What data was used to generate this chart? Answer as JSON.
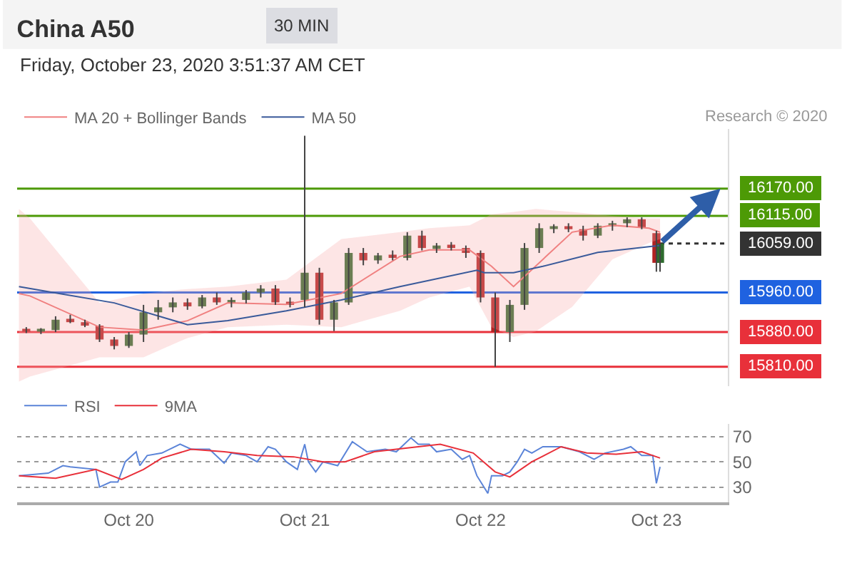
{
  "chart_data": [
    {
      "type": "candlestick",
      "title": "China A50",
      "subtitle": "Friday, October 23, 2020 3:51:37 AM CET",
      "annotations": [
        "30 MIN",
        "Research © 2020"
      ],
      "x": [
        "2020-10-19T10:00",
        "2020-10-19T12:00",
        "2020-10-19T14:00",
        "2020-10-19T16:00",
        "2020-10-19T18:00",
        "2020-10-19T20:00",
        "2020-10-19T22:00",
        "2020-10-20T00:00",
        "2020-10-20T02:00",
        "2020-10-20T04:00",
        "2020-10-20T06:00",
        "2020-10-20T08:00",
        "2020-10-20T10:00",
        "2020-10-20T12:00",
        "2020-10-20T14:00",
        "2020-10-20T16:00",
        "2020-10-20T18:00",
        "2020-10-20T20:00",
        "2020-10-20T22:00",
        "2020-10-21T00:00",
        "2020-10-21T02:00",
        "2020-10-21T04:00",
        "2020-10-21T06:00",
        "2020-10-21T08:00",
        "2020-10-21T10:00",
        "2020-10-21T12:00",
        "2020-10-21T14:00",
        "2020-10-21T16:00",
        "2020-10-21T18:00",
        "2020-10-21T20:00",
        "2020-10-21T22:00",
        "2020-10-22T00:00",
        "2020-10-22T02:00",
        "2020-10-22T04:00",
        "2020-10-22T06:00",
        "2020-10-22T08:00",
        "2020-10-22T10:00",
        "2020-10-22T12:00",
        "2020-10-22T14:00",
        "2020-10-22T16:00",
        "2020-10-22T18:00",
        "2020-10-22T20:00",
        "2020-10-22T22:00",
        "2020-10-23T00:00",
        "2020-10-23T00:30"
      ],
      "ohlc": [
        [
          15885,
          15890,
          15878,
          15882
        ],
        [
          15882,
          15888,
          15876,
          15884
        ],
        [
          15884,
          15912,
          15880,
          15905
        ],
        [
          15905,
          15915,
          15898,
          15900
        ],
        [
          15900,
          15905,
          15890,
          15893
        ],
        [
          15893,
          15896,
          15860,
          15865
        ],
        [
          15865,
          15870,
          15845,
          15852
        ],
        [
          15852,
          15880,
          15848,
          15875
        ],
        [
          15875,
          15935,
          15860,
          15920
        ],
        [
          15920,
          15945,
          15905,
          15930
        ],
        [
          15930,
          15950,
          15920,
          15940
        ],
        [
          15940,
          15948,
          15925,
          15932
        ],
        [
          15932,
          15955,
          15928,
          15950
        ],
        [
          15950,
          15960,
          15935,
          15940
        ],
        [
          15940,
          15950,
          15930,
          15945
        ],
        [
          15945,
          15965,
          15938,
          15960
        ],
        [
          15960,
          15975,
          15950,
          15968
        ],
        [
          15968,
          15975,
          15935,
          15940
        ],
        [
          15940,
          15950,
          15930,
          15935
        ],
        [
          15945,
          16277,
          15930,
          16000
        ],
        [
          16000,
          16010,
          15895,
          15905
        ],
        [
          15905,
          15945,
          15882,
          15940
        ],
        [
          15940,
          16050,
          15935,
          16040
        ],
        [
          16040,
          16050,
          16015,
          16025
        ],
        [
          16025,
          16040,
          16018,
          16035
        ],
        [
          16035,
          16045,
          16025,
          16030
        ],
        [
          16030,
          16082,
          16025,
          16075
        ],
        [
          16075,
          16085,
          16045,
          16050
        ],
        [
          16050,
          16060,
          16040,
          16055
        ],
        [
          16055,
          16062,
          16045,
          16050
        ],
        [
          16050,
          16055,
          16030,
          16040
        ],
        [
          16040,
          16045,
          15940,
          15950
        ],
        [
          15950,
          15960,
          15810,
          15880
        ],
        [
          15880,
          15945,
          15860,
          15935
        ],
        [
          15935,
          16060,
          15925,
          16050
        ],
        [
          16050,
          16100,
          16040,
          16090
        ],
        [
          16090,
          16098,
          16080,
          16092
        ],
        [
          16092,
          16100,
          16082,
          16088
        ],
        [
          16088,
          16095,
          16065,
          16075
        ],
        [
          16075,
          16100,
          16070,
          16095
        ],
        [
          16095,
          16105,
          16085,
          16100
        ],
        [
          16100,
          16112,
          16092,
          16108
        ],
        [
          16108,
          16112,
          16088,
          16092
        ],
        [
          16080,
          16085,
          16002,
          16020
        ],
        [
          16020,
          16059,
          16002,
          16059
        ]
      ],
      "series": [
        {
          "name": "MA 20 + Bollinger Bands",
          "type": "line",
          "color": "#f08080",
          "x": [
            "2020-10-19T09:00",
            "2020-10-19T10:30",
            "2020-10-19T20:00",
            "2020-10-20T02:00",
            "2020-10-20T08:00",
            "2020-10-20T13:30",
            "2020-10-20T21:30",
            "2020-10-21T05:00",
            "2020-10-21T13:00",
            "2020-10-21T17:00",
            "2020-10-21T22:30",
            "2020-10-22T01:30",
            "2020-10-22T04:30",
            "2020-10-22T07:30",
            "2020-10-22T12:30",
            "2020-10-22T18:00",
            "2020-10-22T23:00",
            "2020-10-23T00:30"
          ],
          "values": [
            15958,
            15953,
            15890,
            15884,
            15903,
            15939,
            15936,
            15958,
            16033,
            16046,
            16046,
            16013,
            15972,
            16013,
            16082,
            16096,
            16090,
            16082
          ],
          "upper": [
            16129,
            16110,
            15939,
            15958,
            15967,
            15972,
            15986,
            16068,
            16082,
            16090,
            16096,
            16118,
            16123,
            16129,
            16123,
            16115,
            16110,
            16110
          ],
          "lower": [
            15780,
            15790,
            15829,
            15829,
            15868,
            15890,
            15895,
            15890,
            15923,
            15950,
            15972,
            15890,
            15870,
            15881,
            15931,
            16027,
            16060,
            16068
          ]
        },
        {
          "name": "MA 50",
          "type": "line",
          "color": "#3a5a9a",
          "x": [
            "2020-10-19T09:00",
            "2020-10-19T14:30",
            "2020-10-19T22:00",
            "2020-10-20T08:00",
            "2020-10-20T13:30",
            "2020-10-20T21:30",
            "2020-10-21T05:00",
            "2020-10-21T13:00",
            "2020-10-21T23:30",
            "2020-10-22T00:30",
            "2020-10-22T04:30",
            "2020-10-22T08:30",
            "2020-10-22T16:00",
            "2020-10-23T00:30"
          ],
          "values": [
            15972,
            15958,
            15939,
            15895,
            15903,
            15923,
            15945,
            15972,
            16005,
            16000,
            16000,
            16013,
            16041,
            16055
          ]
        }
      ],
      "ref_lines": [
        {
          "axis": "y",
          "value": 16170,
          "label": "16170.00",
          "color": "#4d9a06"
        },
        {
          "axis": "y",
          "value": 16115,
          "label": "16115.00",
          "color": "#4d9a06"
        },
        {
          "axis": "y",
          "value": 16059,
          "label": "16059.00",
          "color": "#333333",
          "line_style": "dotted"
        },
        {
          "axis": "y",
          "value": 15960,
          "label": "15960.00",
          "color": "#1f62e0"
        },
        {
          "axis": "y",
          "value": 15880,
          "label": "15880.00",
          "color": "#e8303a"
        },
        {
          "axis": "y",
          "value": 15810,
          "label": "15810.00",
          "color": "#e8303a"
        }
      ],
      "xlim": [
        "2020-10-19T08:45",
        "2020-10-23T09:45"
      ],
      "ylim": [
        15770,
        16290
      ],
      "legend": "top left",
      "tick_labels": false
    },
    {
      "type": "line",
      "series": [
        {
          "name": "RSI",
          "color": "#5b84d8",
          "x": [
            "2020-10-19T09:00",
            "2020-10-19T13:00",
            "2020-10-19T15:00",
            "2020-10-19T16:00",
            "2020-10-19T19:30",
            "2020-10-19T20:00",
            "2020-10-19T21:30",
            "2020-10-19T22:30",
            "2020-10-19T23:30",
            "2020-10-20T01:00",
            "2020-10-20T01:30",
            "2020-10-20T02:30",
            "2020-10-20T04:30",
            "2020-10-20T07:00",
            "2020-10-20T08:30",
            "2020-10-20T11:00",
            "2020-10-20T13:00",
            "2020-10-20T14:00",
            "2020-10-20T16:00",
            "2020-10-20T17:30",
            "2020-10-20T19:00",
            "2020-10-20T20:00",
            "2020-10-20T21:30",
            "2020-10-20T23:00",
            "2020-10-21T00:00",
            "2020-10-21T00:30",
            "2020-10-21T01:30",
            "2020-10-21T02:30",
            "2020-10-21T04:30",
            "2020-10-21T06:30",
            "2020-10-21T08:30",
            "2020-10-21T11:00",
            "2020-10-21T12:30",
            "2020-10-21T14:30",
            "2020-10-21T15:30",
            "2020-10-21T17:00",
            "2020-10-21T18:00",
            "2020-10-21T20:00",
            "2020-10-21T21:30",
            "2020-10-21T22:30",
            "2020-10-21T23:30",
            "2020-10-22T01:00",
            "2020-10-22T01:30",
            "2020-10-22T03:00",
            "2020-10-22T04:00",
            "2020-10-22T05:00",
            "2020-10-22T06:00",
            "2020-10-22T07:00",
            "2020-10-22T08:30",
            "2020-10-22T11:00",
            "2020-10-22T13:30",
            "2020-10-22T15:30",
            "2020-10-22T17:00",
            "2020-10-22T19:30",
            "2020-10-22T20:30",
            "2020-10-22T22:00",
            "2020-10-22T23:30",
            "2020-10-23T00:00",
            "2020-10-23T00:30"
          ],
          "values": [
            39,
            41,
            47,
            46,
            44,
            30,
            34,
            34,
            50,
            58,
            47,
            55,
            57,
            64,
            60,
            60,
            49,
            57,
            55,
            50,
            62,
            60,
            50,
            44,
            64,
            50,
            42,
            50,
            47,
            66,
            58,
            60,
            58,
            69,
            64,
            64,
            58,
            60,
            52,
            55,
            39,
            25,
            39,
            39,
            42,
            50,
            60,
            57,
            62,
            62,
            58,
            52,
            57,
            60,
            62,
            55,
            55,
            33,
            46
          ]
        },
        {
          "name": "9MA",
          "color": "#e8303a",
          "x": [
            "2020-10-19T09:00",
            "2020-10-19T14:00",
            "2020-10-19T19:30",
            "2020-10-19T23:00",
            "2020-10-20T02:00",
            "2020-10-20T04:30",
            "2020-10-20T08:30",
            "2020-10-20T13:00",
            "2020-10-20T17:30",
            "2020-10-20T22:30",
            "2020-10-21T02:30",
            "2020-10-21T05:30",
            "2020-10-21T09:30",
            "2020-10-21T15:30",
            "2020-10-21T18:30",
            "2020-10-21T23:00",
            "2020-10-22T02:00",
            "2020-10-22T04:00",
            "2020-10-22T07:00",
            "2020-10-22T11:00",
            "2020-10-22T14:30",
            "2020-10-22T18:30",
            "2020-10-22T22:00",
            "2020-10-23T00:30"
          ],
          "values": [
            39,
            37,
            44,
            36,
            44,
            53,
            60,
            58,
            55,
            54,
            50,
            50,
            58,
            62,
            64,
            57,
            42,
            38,
            50,
            62,
            57,
            56,
            58,
            53
          ]
        }
      ],
      "xlim": [
        "2020-10-19T08:45",
        "2020-10-23T09:45"
      ],
      "xticks": [
        {
          "value": "2020-10-20",
          "label": "Oct 20"
        },
        {
          "value": "2020-10-21",
          "label": "Oct 21"
        },
        {
          "value": "2020-10-22",
          "label": "Oct 22"
        },
        {
          "value": "2020-10-23",
          "label": "Oct 23"
        }
      ],
      "ylim": [
        18,
        80
      ],
      "yticks": [
        70,
        50,
        30
      ],
      "grid": "y",
      "legend": "top left"
    }
  ]
}
